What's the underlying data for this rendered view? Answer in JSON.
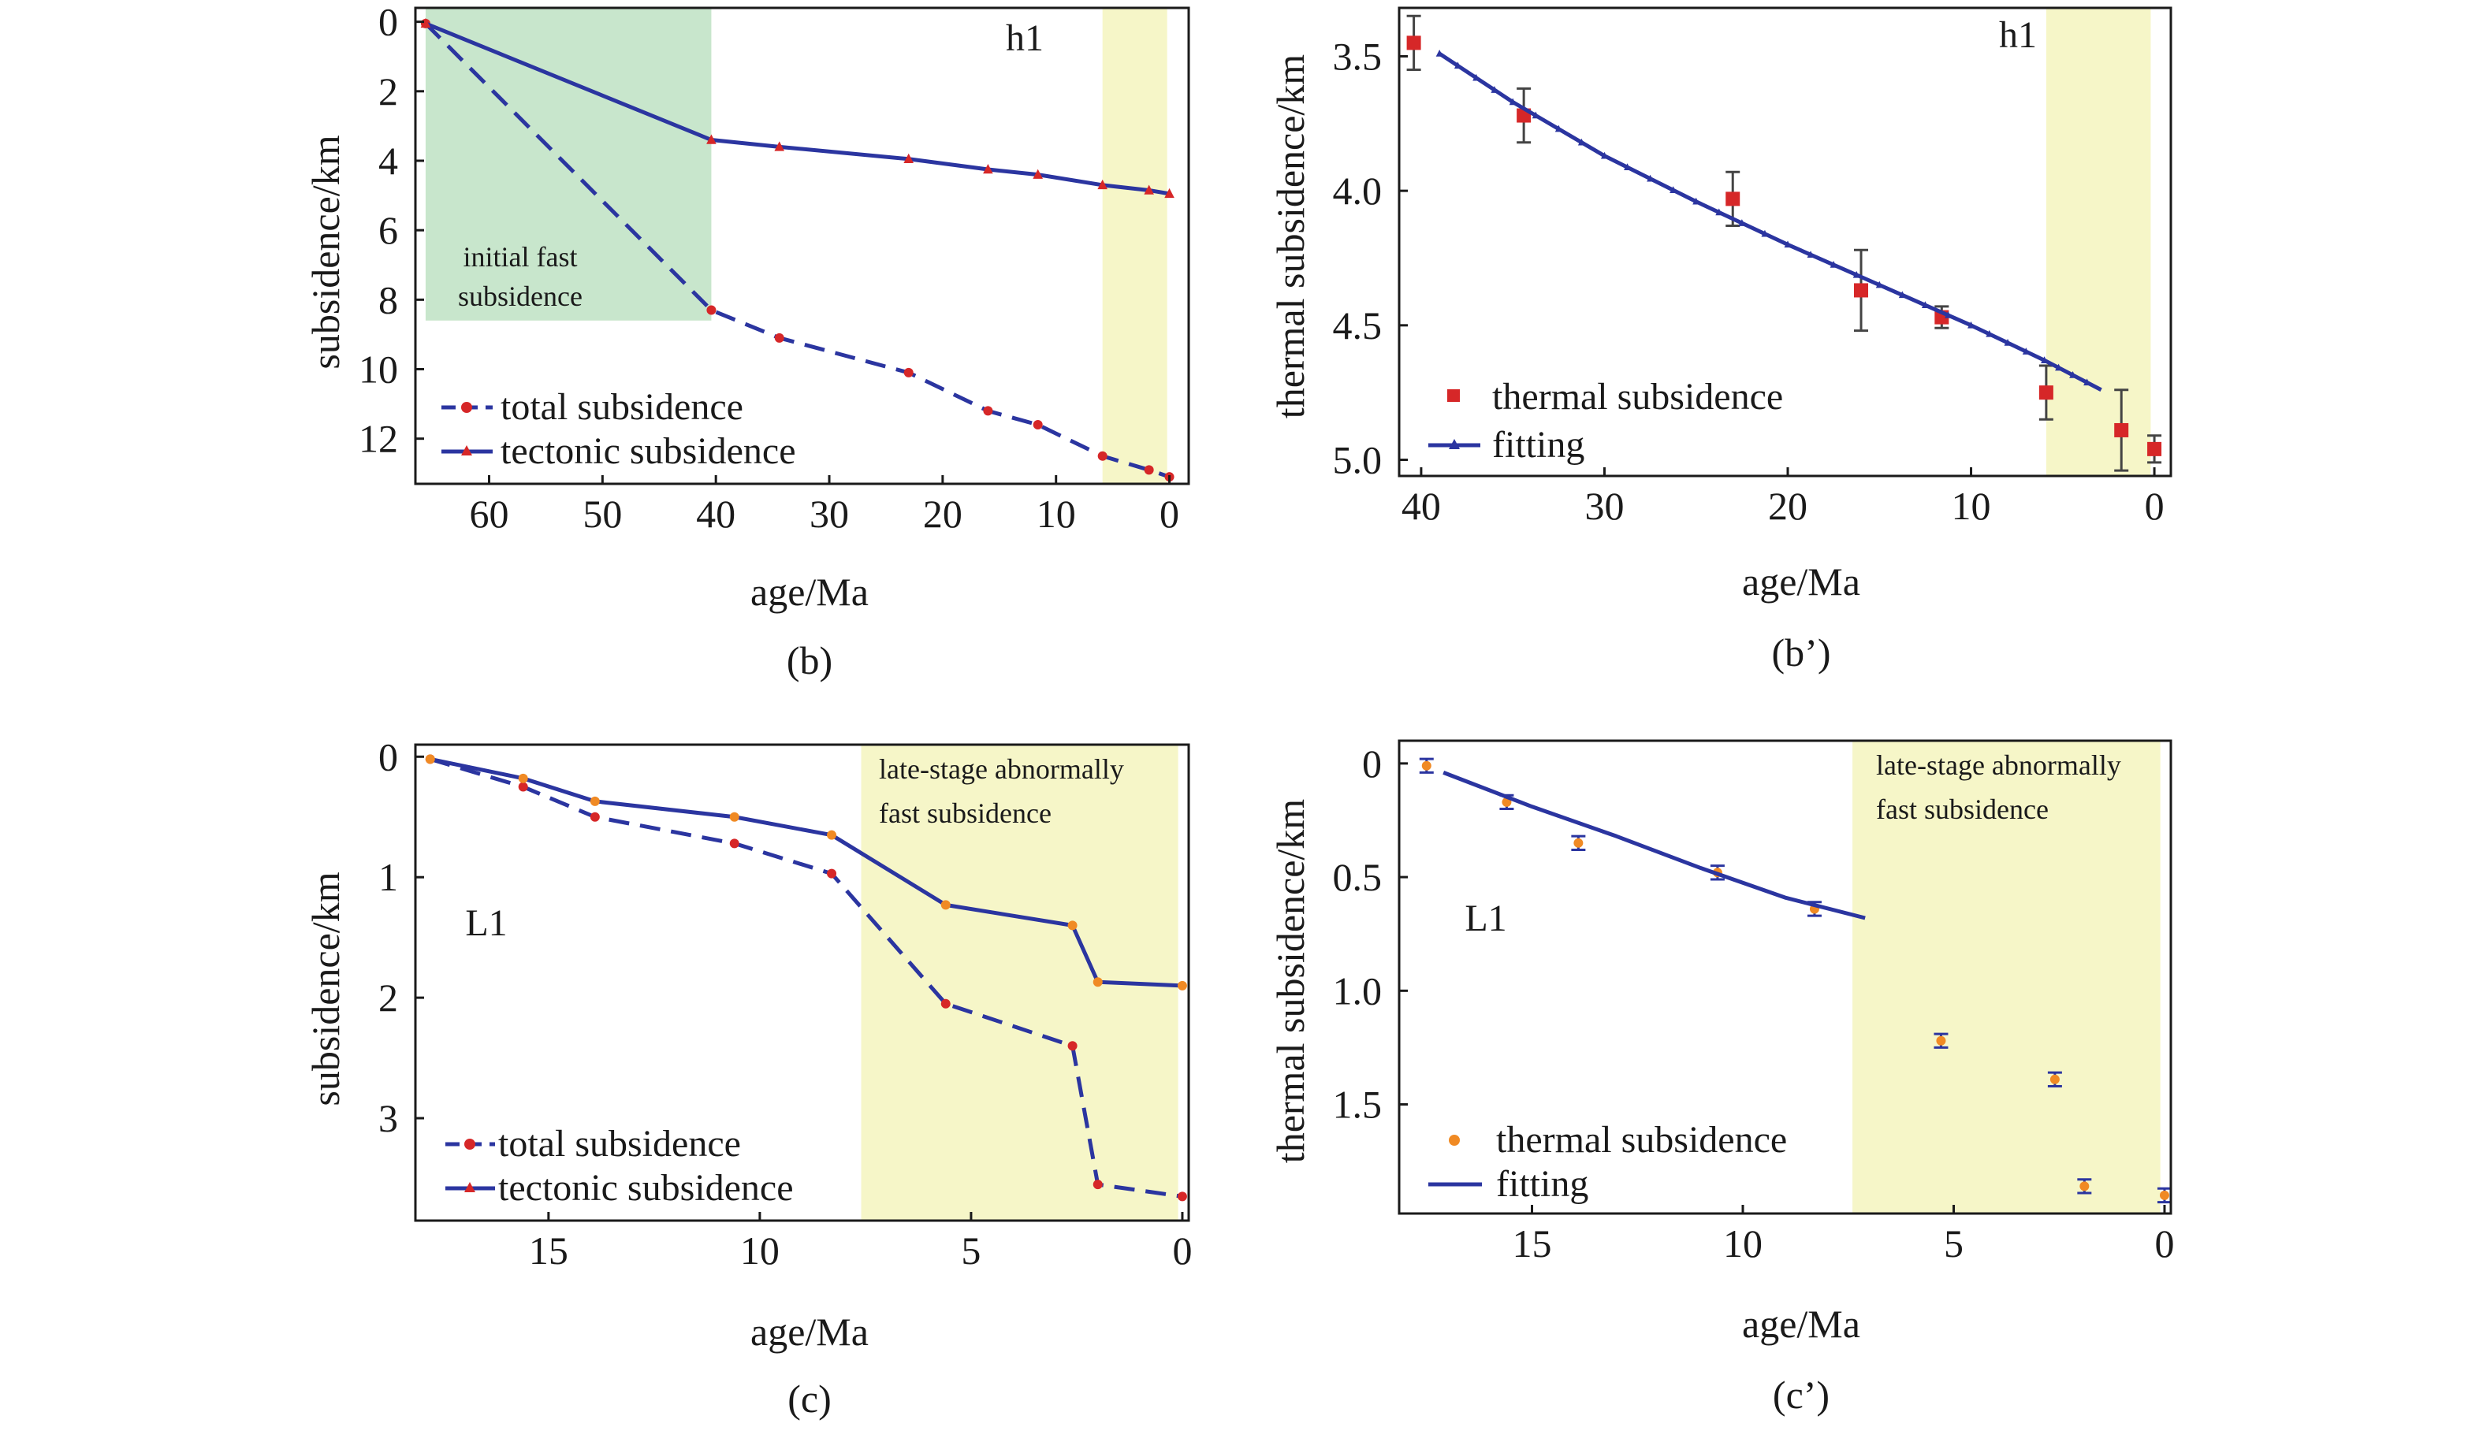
{
  "colors": {
    "line": "#2b35a0",
    "point_red": "#d62728",
    "point_orange": "#f08a24",
    "errorbar_gray": "#444444",
    "errorbar_blue": "#2b35a0",
    "green_band": "#c8e6cc",
    "yellow_band": "#f6f6c8",
    "frame": "#1a1a1a"
  },
  "chart_data": [
    {
      "id": "b",
      "caption": "(b)",
      "type": "line",
      "tag": "h1",
      "xlabel": "age/Ma",
      "ylabel": "subsidence/km",
      "xlim": [
        66.5,
        -1.7
      ],
      "ylim": [
        -0.4,
        13.3
      ],
      "xticks": [
        60,
        50,
        40,
        30,
        20,
        10,
        0
      ],
      "yticks": [
        0,
        2,
        4,
        6,
        8,
        10,
        12
      ],
      "y_inverted": true,
      "bands": [
        {
          "x0": 65.6,
          "x1": 40.4,
          "y0": -0.4,
          "y1": 8.6,
          "color": "green",
          "label_lines": [
            "initial fast",
            "subsidence"
          ],
          "label_at": [
            53,
            6.8
          ]
        },
        {
          "x0": 5.9,
          "x1": 0.2,
          "y0": -0.4,
          "y1": 13.3,
          "color": "yellow"
        }
      ],
      "series": [
        {
          "name": "total subsidence",
          "style": "dashed",
          "marker": "dot",
          "x": [
            65.6,
            40.4,
            34.4,
            23.0,
            16.0,
            11.6,
            5.9,
            1.8,
            0
          ],
          "y": [
            0.05,
            8.3,
            9.1,
            10.1,
            11.2,
            11.6,
            12.5,
            12.9,
            13.1
          ]
        },
        {
          "name": "tectonic subsidence",
          "style": "solid",
          "marker": "triangle",
          "x": [
            65.6,
            40.4,
            34.4,
            23.0,
            16.0,
            11.6,
            5.9,
            1.8,
            0
          ],
          "y": [
            0.05,
            3.4,
            3.6,
            3.95,
            4.25,
            4.4,
            4.7,
            4.85,
            4.95
          ]
        }
      ],
      "legend_position": "bottom-left"
    },
    {
      "id": "b2",
      "caption": "(b’)",
      "type": "scatter",
      "tag": "h1",
      "xlabel": "age/Ma",
      "ylabel": "thermal subsidence/km",
      "xlim": [
        41.2,
        -0.9
      ],
      "ylim": [
        3.32,
        5.06
      ],
      "xticks": [
        40,
        30,
        20,
        10,
        0
      ],
      "yticks": [
        3.5,
        4.0,
        4.5,
        5.0
      ],
      "ytick_labels": [
        "3.5",
        "4.0",
        "4.5",
        "5.0"
      ],
      "y_inverted": true,
      "bands": [
        {
          "x0": 5.9,
          "x1": 0.2,
          "y0": 3.32,
          "y1": 5.06,
          "color": "yellow"
        }
      ],
      "series": [
        {
          "name": "thermal subsidence",
          "style": "points",
          "marker": "square",
          "x": [
            40.4,
            34.4,
            23.0,
            16.0,
            11.6,
            5.9,
            1.8,
            0
          ],
          "y": [
            3.45,
            3.72,
            4.03,
            4.37,
            4.47,
            4.75,
            4.89,
            4.96
          ],
          "err": [
            0.1,
            0.1,
            0.1,
            0.15,
            0.04,
            0.1,
            0.15,
            0.05
          ]
        },
        {
          "name": "fitting",
          "style": "solid",
          "marker": "small-triangle",
          "x": [
            39.0,
            35.0,
            30.0,
            25.0,
            20.0,
            15.0,
            10.0,
            6.0,
            2.9
          ],
          "y": [
            3.49,
            3.67,
            3.87,
            4.04,
            4.2,
            4.35,
            4.5,
            4.63,
            4.74
          ]
        }
      ],
      "legend_position": "bottom-left"
    },
    {
      "id": "c",
      "caption": "(c)",
      "type": "line",
      "tag": "L1",
      "xlabel": "age/Ma",
      "ylabel": "subsidence/km",
      "xlim": [
        18.15,
        -0.15
      ],
      "ylim": [
        -0.1,
        3.85
      ],
      "xticks": [
        15,
        10,
        5,
        0
      ],
      "yticks": [
        0,
        1,
        2,
        3
      ],
      "y_inverted": true,
      "bands": [
        {
          "x0": 7.6,
          "x1": 0.1,
          "y0": -0.1,
          "y1": 3.85,
          "color": "yellow",
          "label_lines": [
            "late-stage abnormally",
            "fast subsidence"
          ],
          "label_at": [
            7.5,
            0.1
          ]
        }
      ],
      "series": [
        {
          "name": "total subsidence",
          "style": "dashed",
          "marker": "dot",
          "x": [
            17.8,
            15.6,
            13.9,
            10.6,
            8.3,
            5.6,
            2.6,
            2.0,
            0
          ],
          "y": [
            0.02,
            0.25,
            0.5,
            0.72,
            0.97,
            2.05,
            2.4,
            3.55,
            3.65
          ]
        },
        {
          "name": "tectonic subsidence",
          "style": "solid",
          "marker": "dot-orange",
          "x": [
            17.8,
            15.6,
            13.9,
            10.6,
            8.3,
            5.6,
            2.6,
            2.0,
            0
          ],
          "y": [
            0.02,
            0.18,
            0.37,
            0.5,
            0.65,
            1.23,
            1.4,
            1.87,
            1.9
          ]
        }
      ],
      "legend_position": "bottom-left"
    },
    {
      "id": "c2",
      "caption": "(c’)",
      "type": "scatter",
      "tag": "L1",
      "xlabel": "age/Ma",
      "ylabel": "thermal subsidence/km",
      "xlim": [
        18.15,
        -0.15
      ],
      "ylim": [
        -0.1,
        1.98
      ],
      "xticks": [
        15,
        10,
        5,
        0
      ],
      "yticks": [
        0,
        0.5,
        1.0,
        1.5
      ],
      "ytick_labels": [
        "0",
        "0.5",
        "1.0",
        "1.5"
      ],
      "y_inverted": true,
      "bands": [
        {
          "x0": 7.4,
          "x1": 0.1,
          "y0": -0.1,
          "y1": 1.98,
          "color": "yellow",
          "label_lines": [
            "late-stage abnormally",
            "fast subsidence"
          ],
          "label_at": [
            7.4,
            -0.05
          ]
        }
      ],
      "series": [
        {
          "name": "thermal subsidence",
          "style": "points",
          "marker": "dot-orange",
          "x": [
            17.5,
            15.6,
            13.9,
            10.6,
            8.3,
            5.3,
            2.6,
            1.9,
            0
          ],
          "y": [
            0.01,
            0.17,
            0.35,
            0.48,
            0.64,
            1.22,
            1.39,
            1.86,
            1.9
          ],
          "err": [
            0.03,
            0.03,
            0.03,
            0.03,
            0.03,
            0.03,
            0.03,
            0.03,
            0.03
          ]
        },
        {
          "name": "fitting",
          "style": "solid",
          "marker": "none",
          "x": [
            17.1,
            15.0,
            13.0,
            11.0,
            9.0,
            7.1
          ],
          "y": [
            0.04,
            0.19,
            0.32,
            0.46,
            0.59,
            0.68
          ]
        }
      ],
      "legend_position": "bottom-left"
    }
  ]
}
